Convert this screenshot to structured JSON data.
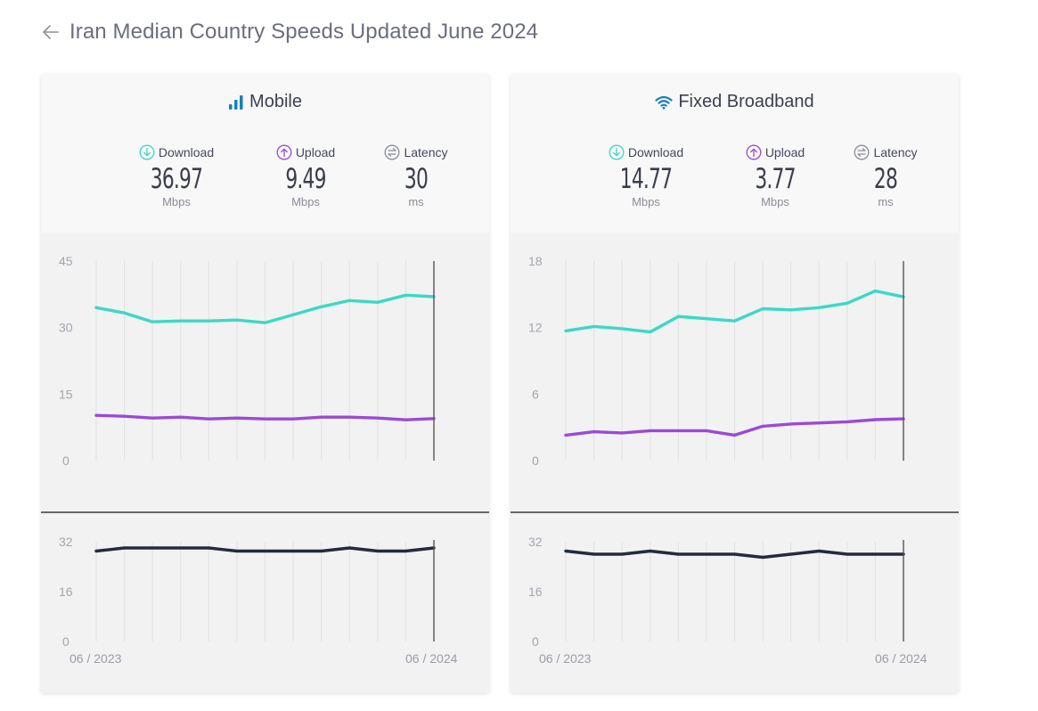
{
  "header": {
    "back_icon": "arrow-left-icon",
    "title": "Iran Median Country Speeds Updated June 2024"
  },
  "colors": {
    "download": "#3bd8c8",
    "upload": "#9b4ad6",
    "latency": "#262a3d",
    "mobile_icon": "#1a7fc1",
    "wifi_icon": "#1a7fc1",
    "latency_icon": "#8a8c98"
  },
  "cards": [
    {
      "id": "mobile",
      "title": "Mobile",
      "icon": "signal-bars-icon",
      "metrics": [
        {
          "label": "Download",
          "icon": "download-arrow-icon",
          "value": "36.97",
          "unit": "Mbps"
        },
        {
          "label": "Upload",
          "icon": "upload-arrow-icon",
          "value": "9.49",
          "unit": "Mbps"
        },
        {
          "label": "Latency",
          "icon": "latency-arrows-icon",
          "value": "30",
          "unit": "ms"
        }
      ]
    },
    {
      "id": "fixed",
      "title": "Fixed Broadband",
      "icon": "wifi-icon",
      "metrics": [
        {
          "label": "Download",
          "icon": "download-arrow-icon",
          "value": "14.77",
          "unit": "Mbps"
        },
        {
          "label": "Upload",
          "icon": "upload-arrow-icon",
          "value": "3.77",
          "unit": "Mbps"
        },
        {
          "label": "Latency",
          "icon": "latency-arrows-icon",
          "value": "28",
          "unit": "ms"
        }
      ]
    }
  ],
  "chart_data": [
    {
      "type": "line",
      "title": "Mobile speeds",
      "x_labels": [
        "06 / 2023",
        "06 / 2024"
      ],
      "n_points": 13,
      "ylim": [
        0,
        45
      ],
      "yticks": [
        "0",
        "15",
        "30",
        "45"
      ],
      "series": [
        {
          "name": "Download",
          "values": [
            34.5,
            33.3,
            31.3,
            31.5,
            31.5,
            31.7,
            31.1,
            32.9,
            34.7,
            36.1,
            35.7,
            37.3,
            36.97
          ]
        },
        {
          "name": "Upload",
          "values": [
            10.2,
            10.0,
            9.6,
            9.8,
            9.4,
            9.6,
            9.4,
            9.4,
            9.8,
            9.8,
            9.6,
            9.2,
            9.49
          ]
        }
      ]
    },
    {
      "type": "line",
      "title": "Mobile latency",
      "x_labels": [
        "06 / 2023",
        "06 / 2024"
      ],
      "n_points": 13,
      "ylim": [
        0,
        32
      ],
      "yticks": [
        "0",
        "16",
        "32"
      ],
      "series": [
        {
          "name": "Latency",
          "values": [
            29,
            30,
            30,
            30,
            30,
            29,
            29,
            29,
            29,
            30,
            29,
            29,
            30
          ]
        }
      ]
    },
    {
      "type": "line",
      "title": "Fixed Broadband speeds",
      "x_labels": [
        "06 / 2023",
        "06 / 2024"
      ],
      "n_points": 13,
      "ylim": [
        0,
        18
      ],
      "yticks": [
        "0",
        "6",
        "12",
        "18"
      ],
      "series": [
        {
          "name": "Download",
          "values": [
            11.7,
            12.1,
            11.9,
            11.6,
            13.0,
            12.8,
            12.6,
            13.7,
            13.6,
            13.8,
            14.2,
            15.3,
            14.77
          ]
        },
        {
          "name": "Upload",
          "values": [
            2.3,
            2.6,
            2.5,
            2.7,
            2.7,
            2.7,
            2.3,
            3.1,
            3.3,
            3.4,
            3.5,
            3.7,
            3.77
          ]
        }
      ]
    },
    {
      "type": "line",
      "title": "Fixed Broadband latency",
      "x_labels": [
        "06 / 2023",
        "06 / 2024"
      ],
      "n_points": 13,
      "ylim": [
        0,
        32
      ],
      "yticks": [
        "0",
        "16",
        "32"
      ],
      "series": [
        {
          "name": "Latency",
          "values": [
            29,
            28,
            28,
            29,
            28,
            28,
            28,
            27,
            28,
            29,
            28,
            28,
            28
          ]
        }
      ]
    }
  ]
}
